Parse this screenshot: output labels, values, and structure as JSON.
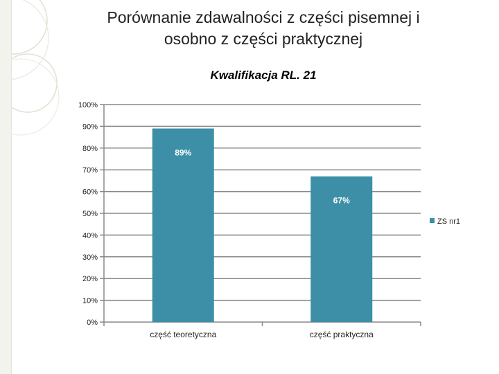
{
  "slide": {
    "title_line1": "Porównanie zdawalności z części pisemnej i",
    "title_line2": "osobno z części praktycznej"
  },
  "colors": {
    "bar": "#3c8fa6",
    "grid": "#888888",
    "decoration": "#d9dccc"
  },
  "chart_data": {
    "type": "bar",
    "title": "Kwalifikacja RL. 21",
    "categories": [
      "część teoretyczna",
      "część praktyczna"
    ],
    "series": [
      {
        "name": "ZS nr1",
        "values": [
          89,
          67
        ],
        "labels": [
          "89%",
          "67%"
        ]
      }
    ],
    "ylim": [
      0,
      100
    ],
    "yticks": [
      "0%",
      "10%",
      "20%",
      "30%",
      "40%",
      "50%",
      "60%",
      "70%",
      "80%",
      "90%",
      "100%"
    ],
    "grid": true,
    "legend": "right"
  }
}
